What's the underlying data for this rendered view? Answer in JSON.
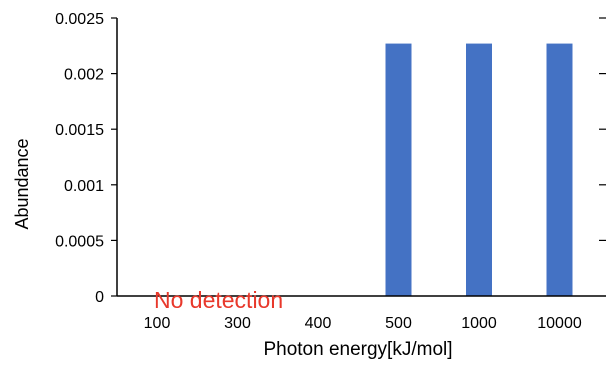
{
  "chart_data": {
    "type": "bar",
    "categories": [
      "100",
      "300",
      "400",
      "500",
      "1000",
      "10000"
    ],
    "values": [
      0,
      0,
      0,
      0.00227,
      0.00227,
      0.00227
    ],
    "xlabel": "Photon energy[kJ/mol]",
    "ylabel": "Abundance",
    "ylim": [
      0,
      0.0025
    ],
    "yticks": [
      "0",
      "0.0005",
      "0.001",
      "0.0015",
      "0.002",
      "0.0025"
    ],
    "grid": false,
    "bar_color": "#4472C4",
    "annotation": {
      "text": "No detection",
      "color": "#E8382B"
    }
  }
}
